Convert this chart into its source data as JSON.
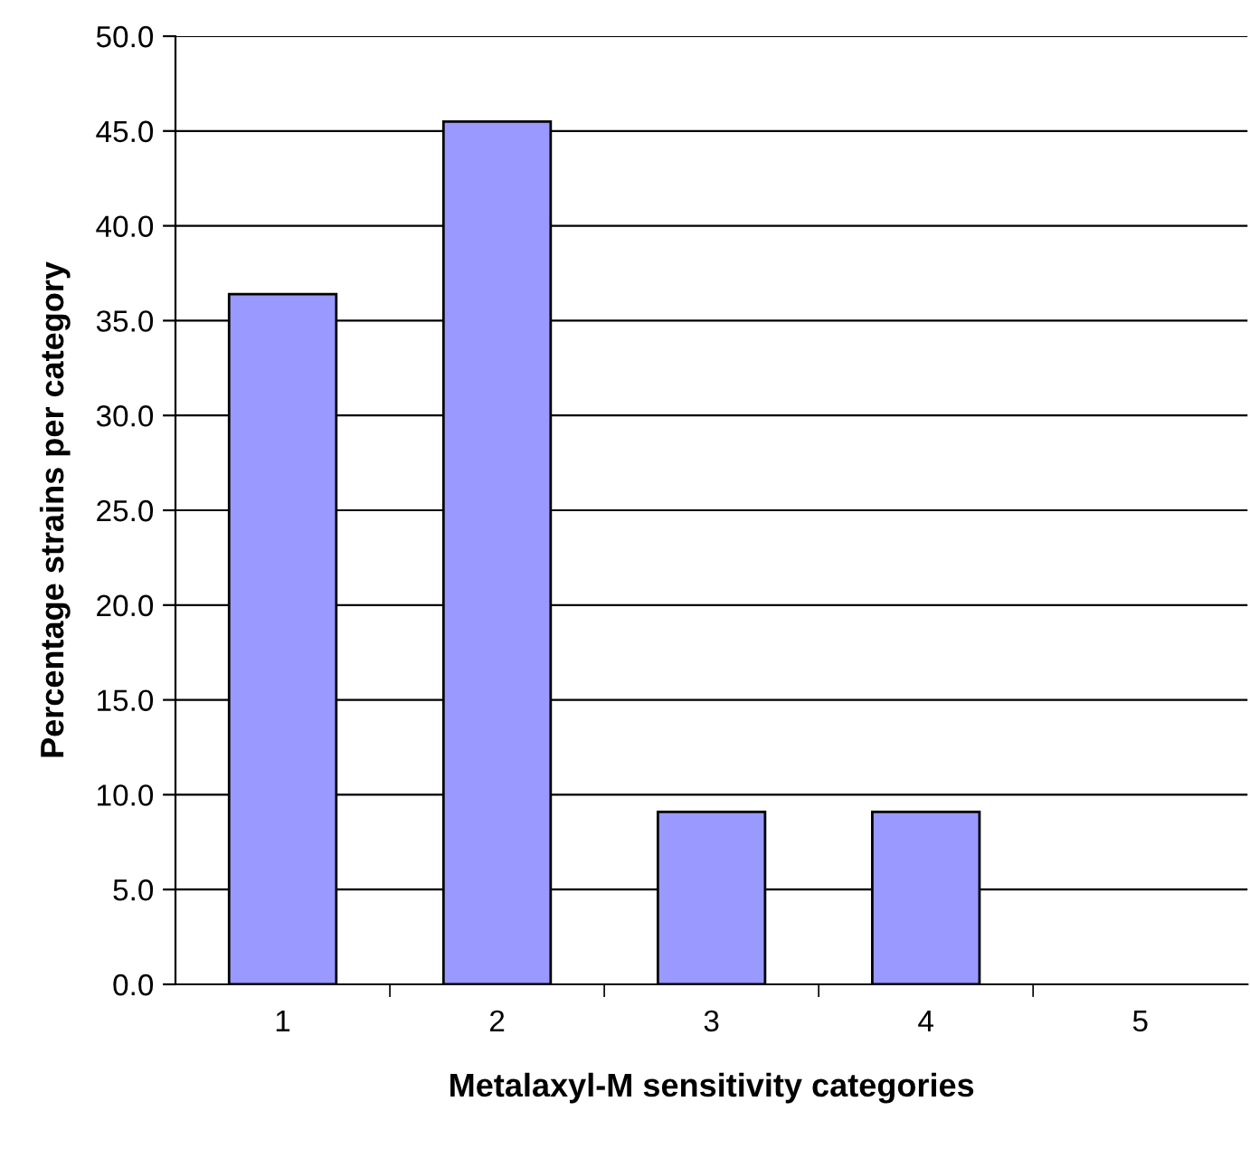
{
  "chart_data": {
    "type": "bar",
    "xlabel": "Metalaxyl-M sensitivity categories",
    "ylabel": "Percentage strains per category",
    "categories": [
      "1",
      "2",
      "3",
      "4",
      "5"
    ],
    "values": [
      36.4,
      45.5,
      9.1,
      9.1,
      0
    ],
    "color": "#9999ff",
    "ylim": [
      0,
      50
    ],
    "yticks": [
      {
        "value": 0,
        "label": "0.0"
      },
      {
        "value": 5,
        "label": "5.0"
      },
      {
        "value": 10,
        "label": "10.0"
      },
      {
        "value": 15,
        "label": "15.0"
      },
      {
        "value": 20,
        "label": "20.0"
      },
      {
        "value": 25,
        "label": "25.0"
      },
      {
        "value": 30,
        "label": "30.0"
      },
      {
        "value": 35,
        "label": "35.0"
      },
      {
        "value": 40,
        "label": "40.0"
      },
      {
        "value": 45,
        "label": "45.0"
      },
      {
        "value": 50,
        "label": "50.0"
      }
    ],
    "grid": "y"
  }
}
